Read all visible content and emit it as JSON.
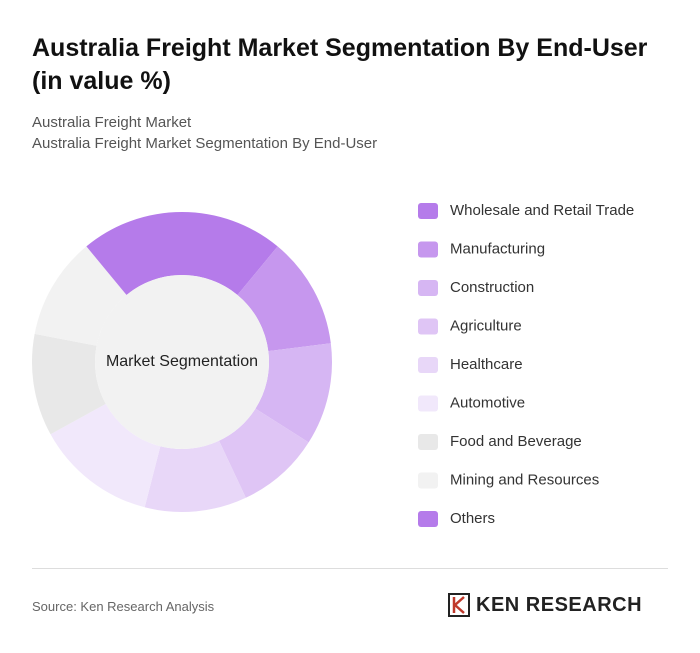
{
  "header": {
    "title": "Australia Freight Market Segmentation By End-User (in value %)",
    "subtitle_1": "Australia Freight Market",
    "subtitle_2": "Australia Freight Market Segmentation By End-User"
  },
  "chart_data": {
    "type": "donut",
    "center_label": "Market Segmentation",
    "categories": [
      "Wholesale and Retail Trade",
      "Manufacturing",
      "Construction",
      "Agriculture",
      "Healthcare",
      "Automotive",
      "Food and Beverage",
      "Mining and Resources",
      "Others"
    ],
    "values": [
      11,
      12,
      11,
      9,
      11,
      13,
      11,
      11,
      11
    ],
    "colors": [
      "#b57bea",
      "#c697ee",
      "#d6b6f3",
      "#dfc5f5",
      "#e8d7f8",
      "#f1e8fb",
      "#e8e8e8",
      "#f2f2f2",
      "#b57bea"
    ]
  },
  "footer": {
    "source": "Source: Ken Research Analysis",
    "logo": "KEN RESEARCH"
  }
}
